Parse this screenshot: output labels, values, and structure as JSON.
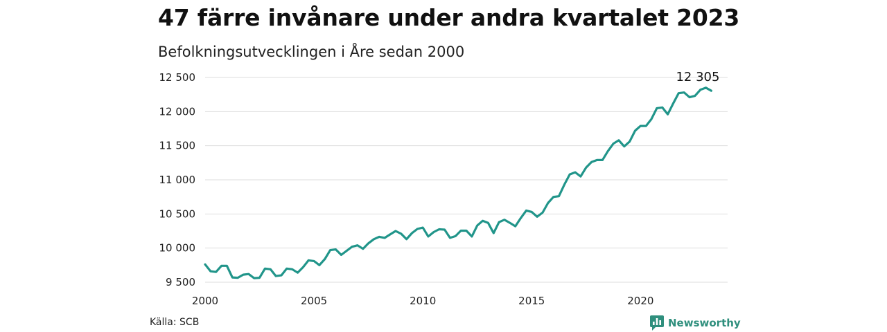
{
  "header": {
    "title": "47 färre invånare under andra kvartalet 2023",
    "subtitle": "Befolkningsutvecklingen i Åre sedan 2000"
  },
  "footer": {
    "source": "Källa: SCB",
    "brand": "Newsworthy",
    "brand_color": "#2f8f7d",
    "brand_icon": "bar-chart-speech-bubble-icon"
  },
  "colors": {
    "line": "#21958a",
    "grid": "#dedede"
  },
  "chart_data": {
    "type": "line",
    "title": "47 färre invånare under andra kvartalet 2023",
    "subtitle": "Befolkningsutvecklingen i Åre sedan 2000",
    "xlabel": "",
    "ylabel": "",
    "xlim": [
      2000,
      2024
    ],
    "ylim": [
      9500,
      12500
    ],
    "x_ticks": [
      2000,
      2005,
      2010,
      2015,
      2020
    ],
    "x_tick_labels": [
      "2000",
      "2005",
      "2010",
      "2015",
      "2020"
    ],
    "y_ticks": [
      9500,
      10000,
      10500,
      11000,
      11500,
      12000,
      12500
    ],
    "y_tick_labels": [
      "9 500",
      "10 000",
      "10 500",
      "11 000",
      "11 500",
      "12 000",
      "12 500"
    ],
    "grid": "horizontal",
    "end_label": "12 305",
    "x": [
      2000.0,
      2000.25,
      2000.5,
      2000.75,
      2001.0,
      2001.25,
      2001.5,
      2001.75,
      2002.0,
      2002.25,
      2002.5,
      2002.75,
      2003.0,
      2003.25,
      2003.5,
      2003.75,
      2004.0,
      2004.25,
      2004.5,
      2004.75,
      2005.0,
      2005.25,
      2005.5,
      2005.75,
      2006.0,
      2006.25,
      2006.5,
      2006.75,
      2007.0,
      2007.25,
      2007.5,
      2007.75,
      2008.0,
      2008.25,
      2008.5,
      2008.75,
      2009.0,
      2009.25,
      2009.5,
      2009.75,
      2010.0,
      2010.25,
      2010.5,
      2010.75,
      2011.0,
      2011.25,
      2011.5,
      2011.75,
      2012.0,
      2012.25,
      2012.5,
      2012.75,
      2013.0,
      2013.25,
      2013.5,
      2013.75,
      2014.0,
      2014.25,
      2014.5,
      2014.75,
      2015.0,
      2015.25,
      2015.5,
      2015.75,
      2016.0,
      2016.25,
      2016.5,
      2016.75,
      2017.0,
      2017.25,
      2017.5,
      2017.75,
      2018.0,
      2018.25,
      2018.5,
      2018.75,
      2019.0,
      2019.25,
      2019.5,
      2019.75,
      2020.0,
      2020.25,
      2020.5,
      2020.75,
      2021.0,
      2021.25,
      2021.5,
      2021.75,
      2022.0,
      2022.25,
      2022.5,
      2022.75,
      2023.0,
      2023.25
    ],
    "series": [
      {
        "values": [
          9760,
          9660,
          9650,
          9740,
          9740,
          9570,
          9565,
          9610,
          9620,
          9560,
          9565,
          9700,
          9690,
          9590,
          9600,
          9700,
          9690,
          9640,
          9720,
          9820,
          9810,
          9750,
          9840,
          9970,
          9980,
          9900,
          9960,
          10020,
          10040,
          9990,
          10070,
          10130,
          10165,
          10150,
          10200,
          10250,
          10210,
          10130,
          10220,
          10280,
          10300,
          10170,
          10235,
          10275,
          10270,
          10150,
          10175,
          10255,
          10255,
          10170,
          10330,
          10400,
          10370,
          10220,
          10380,
          10415,
          10370,
          10320,
          10440,
          10550,
          10530,
          10460,
          10520,
          10660,
          10750,
          10760,
          10930,
          11080,
          11110,
          11050,
          11180,
          11260,
          11290,
          11290,
          11420,
          11530,
          11580,
          11490,
          11560,
          11720,
          11790,
          11790,
          11890,
          12050,
          12060,
          11960,
          12120,
          12270,
          12280,
          12210,
          12230,
          12320,
          12350,
          12305
        ]
      }
    ]
  }
}
